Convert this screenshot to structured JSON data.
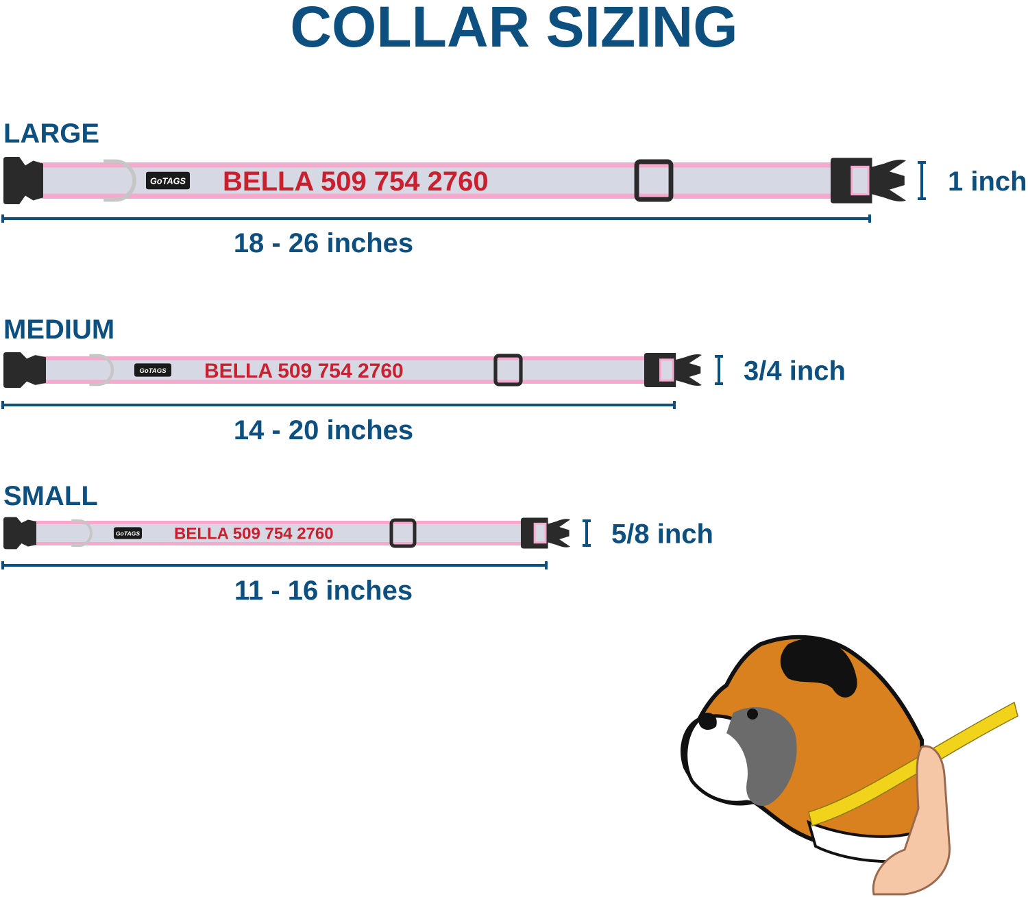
{
  "title": "COLLAR SIZING",
  "colors": {
    "navy": "#0d4f7f",
    "red": "#c8202f",
    "pink": "#f5a9cc",
    "band": "#d6d9e4",
    "ring": "#c6c6c6",
    "clip": "#2a2a2a"
  },
  "brand_label": "GoTAGS",
  "sizes": [
    {
      "name": "LARGE",
      "collar_text": "BELLA 509 754 2760",
      "range": "18 - 26 inches",
      "width": "1 inch"
    },
    {
      "name": "MEDIUM",
      "collar_text": "BELLA 509 754 2760",
      "range": "14 - 20 inches",
      "width": "3/4 inch"
    },
    {
      "name": "SMALL",
      "collar_text": "BELLA 509 754 2760",
      "range": "11 - 16 inches",
      "width": "5/8 inch"
    }
  ],
  "illustration": {
    "icons": [
      "boxer-dog-icon",
      "measuring-tape-icon",
      "hand-icon"
    ]
  }
}
